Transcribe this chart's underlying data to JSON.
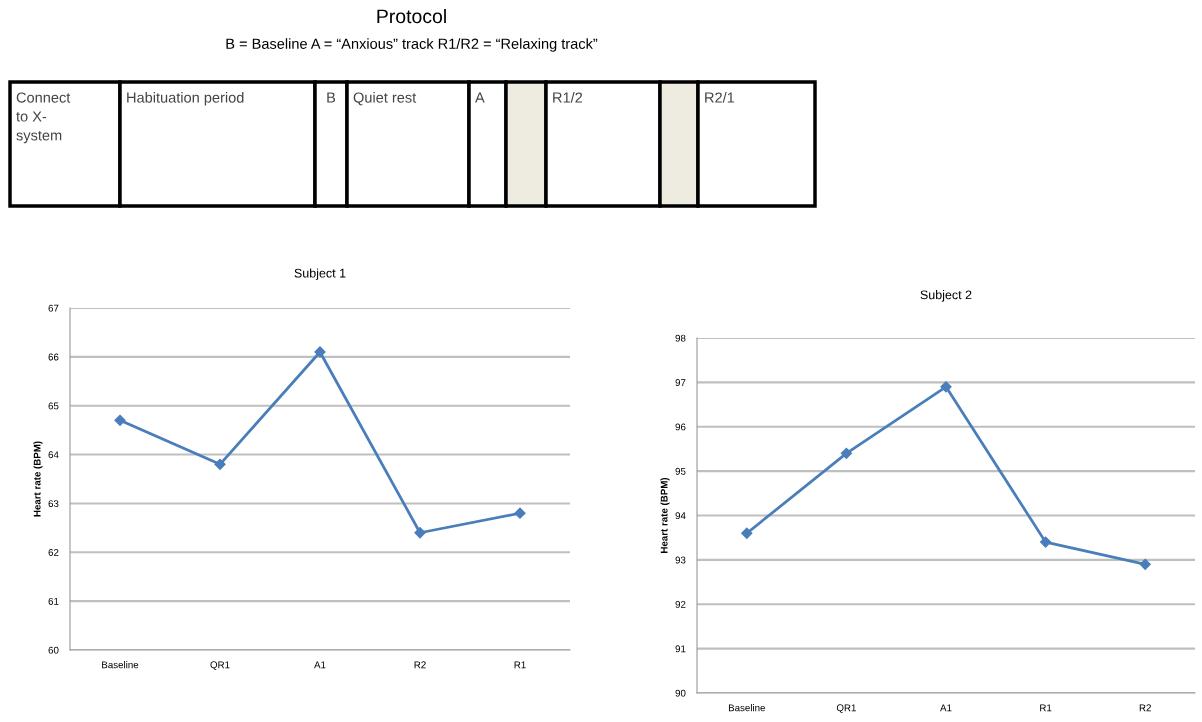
{
  "chart_data": [
    {
      "type": "other",
      "title": "Protocol",
      "subtitle": "B = Baseline A = “Anxious” track R1/R2 = “Relaxing track”",
      "annotations": [
        "Connect\nto X-\nsystem",
        "Habituation period",
        "B",
        "Quiet rest",
        "A",
        "R1/2",
        "R2/1"
      ]
    },
    {
      "type": "line",
      "title": "Subject 1",
      "ylabel": "Heart rate (BPM)",
      "categories": [
        "Baseline",
        "QR1",
        "A1",
        "R2",
        "R1"
      ],
      "series": [
        {
          "color": "#4a7ebb",
          "values": [
            64.7,
            63.8,
            66.1,
            62.4,
            62.8
          ]
        }
      ],
      "ylim": [
        60,
        67
      ],
      "yticks": [
        60,
        61,
        62,
        63,
        64,
        65,
        66,
        67
      ],
      "grid": "y",
      "marker": "diamond",
      "line_style": "solid"
    },
    {
      "type": "line",
      "title": "Subject 2",
      "ylabel": "Heart rate (BPM)",
      "categories": [
        "Baseline",
        "QR1",
        "A1",
        "R1",
        "R2"
      ],
      "series": [
        {
          "color": "#4a7ebb",
          "values": [
            93.6,
            95.4,
            96.9,
            93.4,
            92.9
          ]
        }
      ],
      "ylim": [
        90,
        98
      ],
      "yticks": [
        90,
        91,
        92,
        93,
        94,
        95,
        96,
        97,
        98
      ],
      "grid": "y",
      "marker": "diamond",
      "line_style": "solid"
    }
  ]
}
